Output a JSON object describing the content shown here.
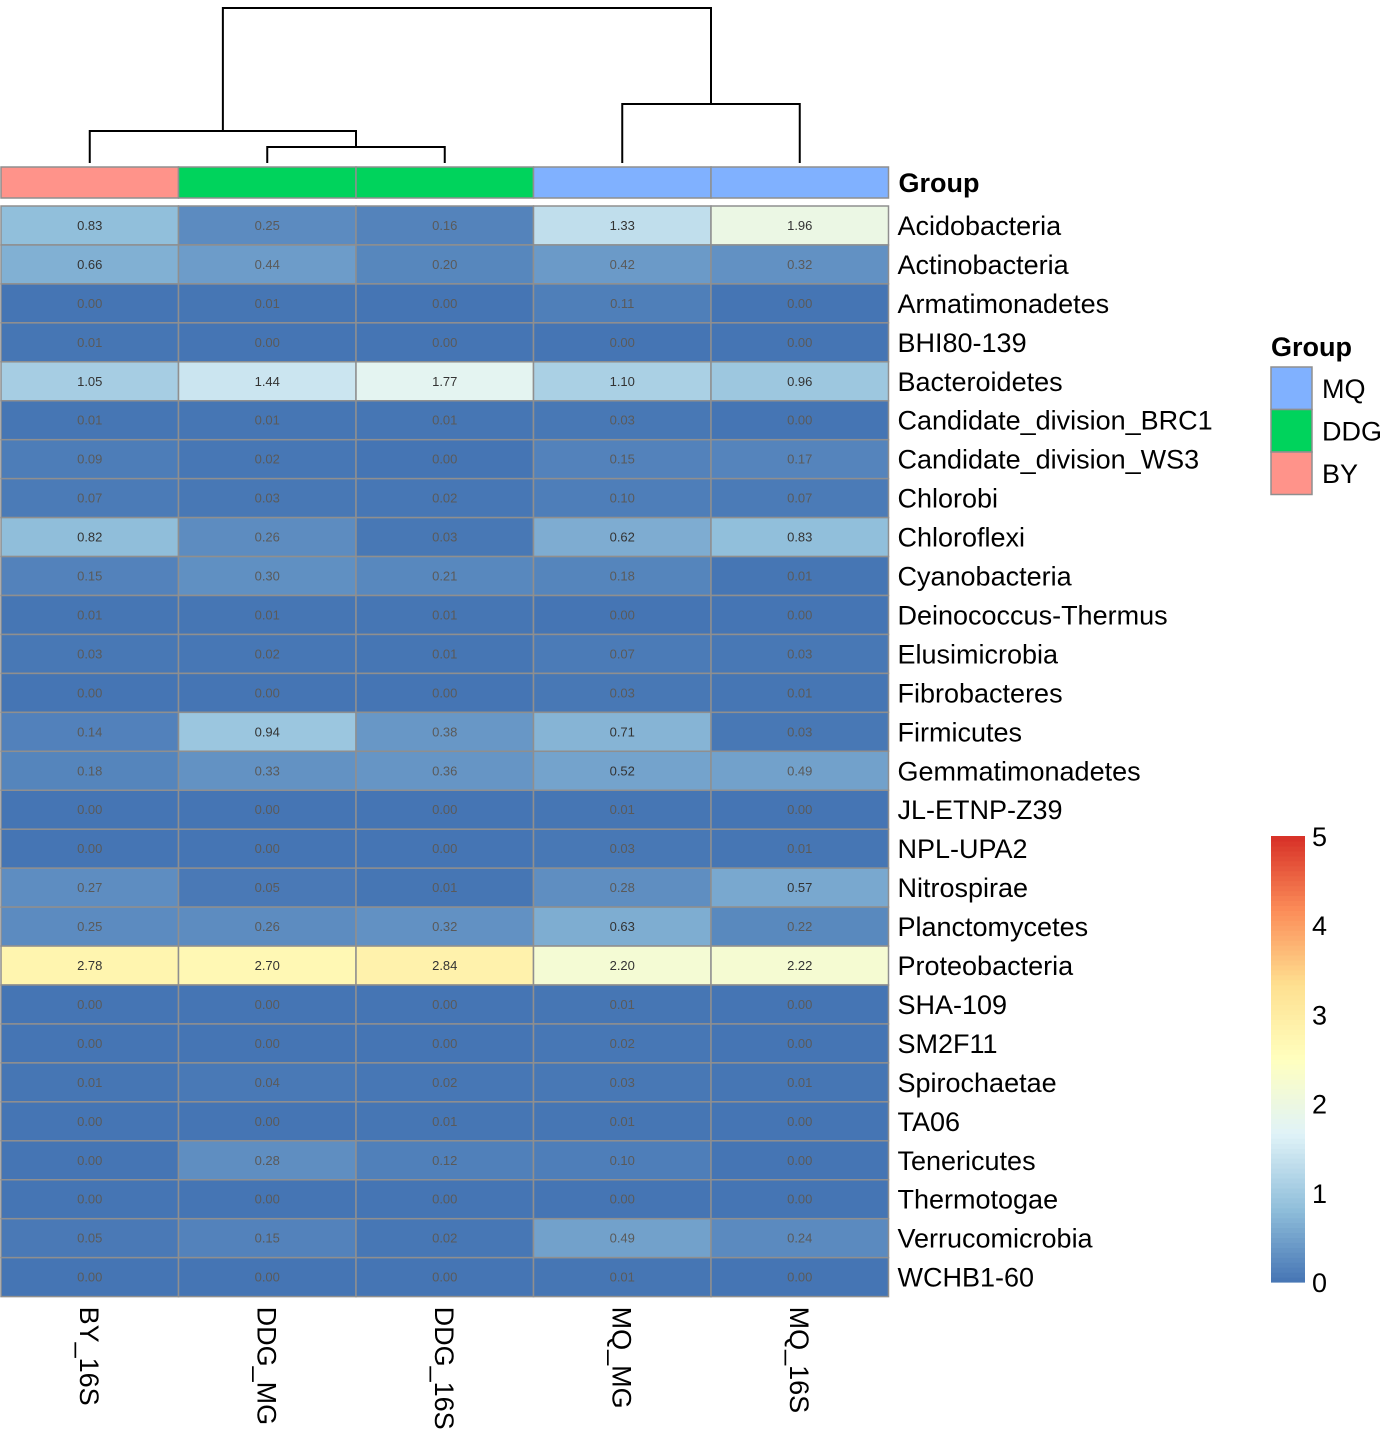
{
  "chart_data": {
    "type": "heatmap",
    "columns": [
      "BY_16S",
      "DDG_MG",
      "DDG_16S",
      "MQ_MG",
      "MQ_16S"
    ],
    "column_groups": [
      "BY",
      "DDG",
      "DDG",
      "MQ",
      "MQ"
    ],
    "rows": [
      "Acidobacteria",
      "Actinobacteria",
      "Armatimonadetes",
      "BHI80-139",
      "Bacteroidetes",
      "Candidate_division_BRC1",
      "Candidate_division_WS3",
      "Chlorobi",
      "Chloroflexi",
      "Cyanobacteria",
      "Deinococcus-Thermus",
      "Elusimicrobia",
      "Fibrobacteres",
      "Firmicutes",
      "Gemmatimonadetes",
      "JL-ETNP-Z39",
      "NPL-UPA2",
      "Nitrospirae",
      "Planctomycetes",
      "Proteobacteria",
      "SHA-109",
      "SM2F11",
      "Spirochaetae",
      "TA06",
      "Tenericutes",
      "Thermotogae",
      "Verrucomicrobia",
      "WCHB1-60"
    ],
    "values": [
      [
        0.83,
        0.25,
        0.16,
        1.33,
        1.96
      ],
      [
        0.66,
        0.44,
        0.2,
        0.42,
        0.32
      ],
      [
        0.0,
        0.01,
        0.0,
        0.11,
        0.0
      ],
      [
        0.01,
        0.0,
        0.0,
        0.0,
        0.0
      ],
      [
        1.05,
        1.44,
        1.77,
        1.1,
        0.96
      ],
      [
        0.01,
        0.01,
        0.01,
        0.03,
        0.0
      ],
      [
        0.09,
        0.02,
        0.0,
        0.15,
        0.17
      ],
      [
        0.07,
        0.03,
        0.02,
        0.1,
        0.07
      ],
      [
        0.82,
        0.26,
        0.03,
        0.62,
        0.83
      ],
      [
        0.15,
        0.3,
        0.21,
        0.18,
        0.01
      ],
      [
        0.01,
        0.01,
        0.01,
        0.0,
        0.0
      ],
      [
        0.03,
        0.02,
        0.01,
        0.07,
        0.03
      ],
      [
        0.0,
        0.0,
        0.0,
        0.03,
        0.01
      ],
      [
        0.14,
        0.94,
        0.38,
        0.71,
        0.03
      ],
      [
        0.18,
        0.33,
        0.36,
        0.52,
        0.49
      ],
      [
        0.0,
        0.0,
        0.0,
        0.01,
        0.0
      ],
      [
        0.0,
        0.0,
        0.0,
        0.03,
        0.01
      ],
      [
        0.27,
        0.05,
        0.01,
        0.28,
        0.57
      ],
      [
        0.25,
        0.26,
        0.32,
        0.63,
        0.22
      ],
      [
        2.78,
        2.7,
        2.84,
        2.2,
        2.22
      ],
      [
        0.0,
        0.0,
        0.0,
        0.01,
        0.0
      ],
      [
        0.0,
        0.0,
        0.0,
        0.02,
        0.0
      ],
      [
        0.01,
        0.04,
        0.02,
        0.03,
        0.01
      ],
      [
        0.0,
        0.0,
        0.01,
        0.01,
        0.0
      ],
      [
        0.0,
        0.28,
        0.12,
        0.1,
        0.0
      ],
      [
        0.0,
        0.0,
        0.0,
        0.0,
        0.0
      ],
      [
        0.05,
        0.15,
        0.02,
        0.49,
        0.24
      ],
      [
        0.0,
        0.0,
        0.0,
        0.01,
        0.0
      ]
    ],
    "value_labels_shown": true,
    "color_scale": {
      "min": 0,
      "max": 5,
      "ticks": [
        0,
        1,
        2,
        3,
        4,
        5
      ],
      "colors": [
        "#4575b4",
        "#91bfdb",
        "#e0f3f8",
        "#ffffbf",
        "#fee090",
        "#fc8d59",
        "#d73027"
      ]
    },
    "annotation": {
      "title": "Group",
      "legend_entries": [
        {
          "label": "MQ",
          "color": "#80b1ff"
        },
        {
          "label": "DDG",
          "color": "#00d35c"
        },
        {
          "label": "BY",
          "color": "#ff938a"
        }
      ]
    },
    "dendrogram": "columns clustered: (BY_16S, (DDG_MG, DDG_16S)), (MQ_MG, MQ_16S)"
  }
}
